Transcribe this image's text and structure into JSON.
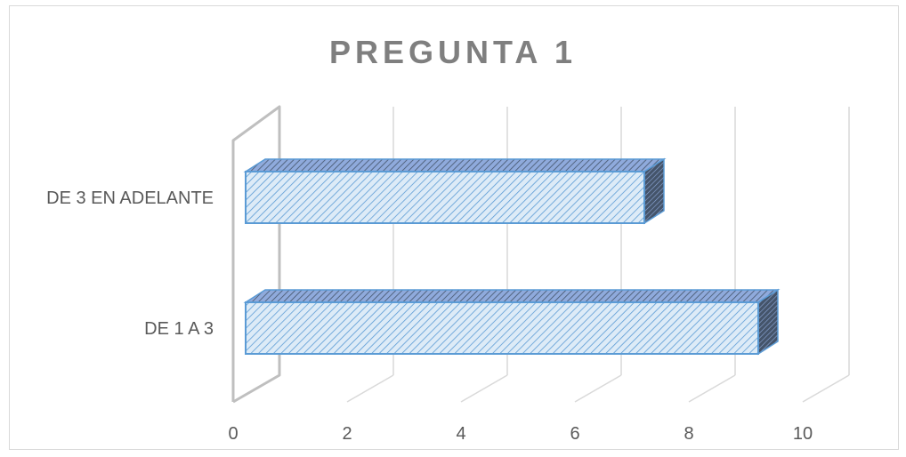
{
  "chart_data": {
    "type": "bar",
    "orientation": "horizontal",
    "style": "3d-clustered-bar",
    "title": "PREGUNTA 1",
    "categories": [
      "DE 1 A 3",
      "DE 3 EN ADELANTE"
    ],
    "values": [
      9,
      7
    ],
    "xlim": [
      0,
      10
    ],
    "xticks": [
      0,
      2,
      4,
      6,
      8,
      10
    ],
    "xlabel": "",
    "ylabel": "",
    "grid": true,
    "legend": "none"
  },
  "colors": {
    "bar_fill": "#ddebf7",
    "bar_stroke": "#5b9bd5",
    "bar_hatch": "#5b9bd5",
    "bar_side": "#44546a",
    "grid": "#d9d9d9",
    "axis_wall": "#bfbfbf",
    "text": "#595959",
    "title": "#7f7f7f"
  }
}
